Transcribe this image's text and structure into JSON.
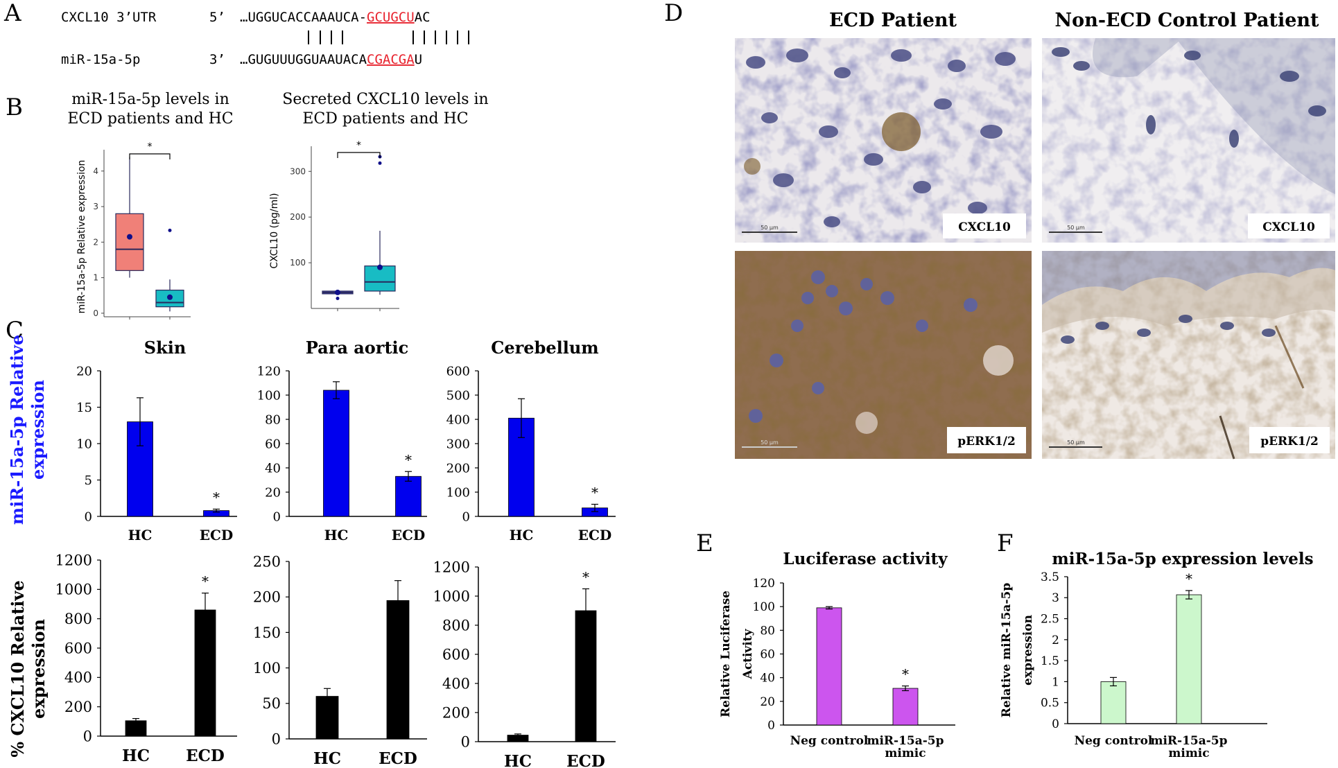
{
  "panels": {
    "A": {
      "letter": "A",
      "utr_label": "CXCL10 3’UTR",
      "utr_five": "5’",
      "utr_seq_black": "…UGGUCACCAAAUCA-",
      "utr_seq_red": "GCUGCU",
      "utr_seq_tail": "AC",
      "mir_label": "miR-15a-5p",
      "mir_three": "3’",
      "mir_seq_black": "…GUGUUUGGUAAUACA",
      "mir_seq_red": "CGACGA",
      "mir_seq_tail": "U"
    },
    "B": {
      "letter": "B"
    },
    "C": {
      "letter": "C"
    },
    "D": {
      "letter": "D"
    },
    "E": {
      "letter": "E"
    },
    "F": {
      "letter": "F"
    }
  },
  "micro": {
    "col_titles": [
      "ECD Patient",
      "Non-ECD Control Patient"
    ],
    "labels": [
      "CXCL10",
      "CXCL10",
      "pERK1/2",
      "pERK1/2"
    ],
    "scales": [
      "50 µm",
      "50 µm",
      "50 µm",
      "50 µm"
    ]
  },
  "colors": {
    "accent_red": "#e8242f",
    "blue_bar": "#0000ee",
    "box_red": "#f08078",
    "box_teal": "#18bcc4",
    "box_line": "#29295c",
    "purple_bar": "#cc55ee",
    "green_bar": "#ccf7cc",
    "ylabel_blue": "#1a1aff"
  },
  "chart_data": [
    {
      "id": "b1",
      "type": "box",
      "title_lines": [
        "miR-15a-5p levels in",
        "ECD patients and HC"
      ],
      "ylabel": "miR-15a-5p Relative expression",
      "yticks": [
        0,
        1,
        2,
        3,
        4
      ],
      "ylim": [
        -0.1,
        4.6
      ],
      "sig": "*",
      "boxes": [
        {
          "q1": 1.2,
          "median": 1.8,
          "q3": 2.8,
          "wlo": 1.0,
          "whi": 4.4,
          "mean": 2.15,
          "outliers": [],
          "fill": "#f08078"
        },
        {
          "q1": 0.18,
          "median": 0.3,
          "q3": 0.65,
          "wlo": 0.05,
          "whi": 0.95,
          "mean": 0.45,
          "outliers": [
            2.33
          ],
          "fill": "#18bcc4"
        }
      ]
    },
    {
      "id": "b2",
      "type": "box",
      "title_lines": [
        "Secreted CXCL10 levels in",
        "ECD patients and HC"
      ],
      "ylabel": "CXCL10 (pg/ml)",
      "yticks": [
        100,
        200,
        300
      ],
      "ylim": [
        0,
        355
      ],
      "sig": "*",
      "boxes": [
        {
          "q1": 32,
          "median": 35,
          "q3": 38,
          "wlo": 32,
          "whi": 38,
          "mean": 35,
          "outliers": [
            22
          ],
          "fill": "#4f4fb8"
        },
        {
          "q1": 38,
          "median": 58,
          "q3": 93,
          "wlo": 30,
          "whi": 170,
          "mean": 90,
          "outliers": [
            318,
            332
          ],
          "fill": "#18bcc4"
        }
      ]
    },
    {
      "id": "c1",
      "type": "bar",
      "title": "Skin",
      "categories": [
        "HC",
        "ECD"
      ],
      "values": [
        13,
        0.8
      ],
      "errors": [
        3.3,
        0.2
      ],
      "yticks": [
        0,
        5,
        10,
        15,
        20
      ],
      "ylim": [
        0,
        20
      ],
      "sig": [
        false,
        true
      ],
      "color": "#0000ee"
    },
    {
      "id": "c2",
      "type": "bar",
      "title": "Para aortic",
      "categories": [
        "HC",
        "ECD"
      ],
      "values": [
        104,
        33
      ],
      "errors": [
        7,
        4
      ],
      "yticks": [
        0,
        20,
        40,
        60,
        80,
        100,
        120
      ],
      "ylim": [
        0,
        120
      ],
      "sig": [
        false,
        true
      ],
      "color": "#0000ee"
    },
    {
      "id": "c3",
      "type": "bar",
      "title": "Cerebellum",
      "categories": [
        "HC",
        "ECD"
      ],
      "values": [
        405,
        35
      ],
      "errors": [
        80,
        15
      ],
      "yticks": [
        0,
        100,
        200,
        300,
        400,
        500,
        600
      ],
      "ylim": [
        0,
        600
      ],
      "sig": [
        false,
        true
      ],
      "color": "#0000ee"
    },
    {
      "id": "c4",
      "type": "bar",
      "title": "",
      "categories": [
        "HC",
        "ECD"
      ],
      "values": [
        105,
        860
      ],
      "errors": [
        15,
        115
      ],
      "yticks": [
        0,
        200,
        400,
        600,
        800,
        1000,
        1200
      ],
      "ylim": [
        0,
        1200
      ],
      "sig": [
        false,
        true
      ],
      "color": "#000000"
    },
    {
      "id": "c5",
      "type": "bar",
      "title": "",
      "categories": [
        "HC",
        "ECD"
      ],
      "values": [
        60,
        195
      ],
      "errors": [
        11,
        28
      ],
      "yticks": [
        0,
        50,
        100,
        150,
        200,
        250
      ],
      "ylim": [
        0,
        250
      ],
      "sig": [
        false,
        false
      ],
      "color": "#000000"
    },
    {
      "id": "c6",
      "type": "bar",
      "title": "",
      "categories": [
        "HC",
        "ECD"
      ],
      "values": [
        45,
        900
      ],
      "errors": [
        8,
        150
      ],
      "yticks": [
        0,
        200,
        400,
        600,
        800,
        1000,
        1200
      ],
      "ylim": [
        0,
        1200
      ],
      "sig": [
        false,
        true
      ],
      "color": "#000000"
    },
    {
      "id": "c_labels",
      "type": "labels",
      "ylabel_top_lines": [
        "miR-15a-5p Relative",
        "expression"
      ],
      "ylabel_bottom_lines": [
        "% CXCL10 Relative",
        "expression"
      ]
    },
    {
      "id": "e",
      "type": "bar",
      "title": "Luciferase activity",
      "ylabel_lines": [
        "Relative Luciferase",
        "Activity"
      ],
      "categories": [
        "Neg control",
        "miR-15a-5p mimic"
      ],
      "values": [
        99,
        31
      ],
      "errors": [
        1,
        2
      ],
      "yticks": [
        0,
        20,
        40,
        60,
        80,
        100,
        120
      ],
      "ylim": [
        0,
        120
      ],
      "sig": [
        false,
        true
      ],
      "color": "#cc55ee"
    },
    {
      "id": "f",
      "type": "bar",
      "title": "miR-15a-5p expression levels",
      "ylabel_lines": [
        "Relative miR-15a-5p",
        "expression"
      ],
      "categories": [
        "Neg control",
        "miR-15a-5p mimic"
      ],
      "values": [
        1.0,
        3.07
      ],
      "errors": [
        0.1,
        0.1
      ],
      "yticks": [
        0,
        0.5,
        1,
        1.5,
        2,
        2.5,
        3,
        3.5
      ],
      "ylim": [
        0,
        3.5
      ],
      "sig": [
        false,
        true
      ],
      "color": "#ccf7cc"
    }
  ]
}
